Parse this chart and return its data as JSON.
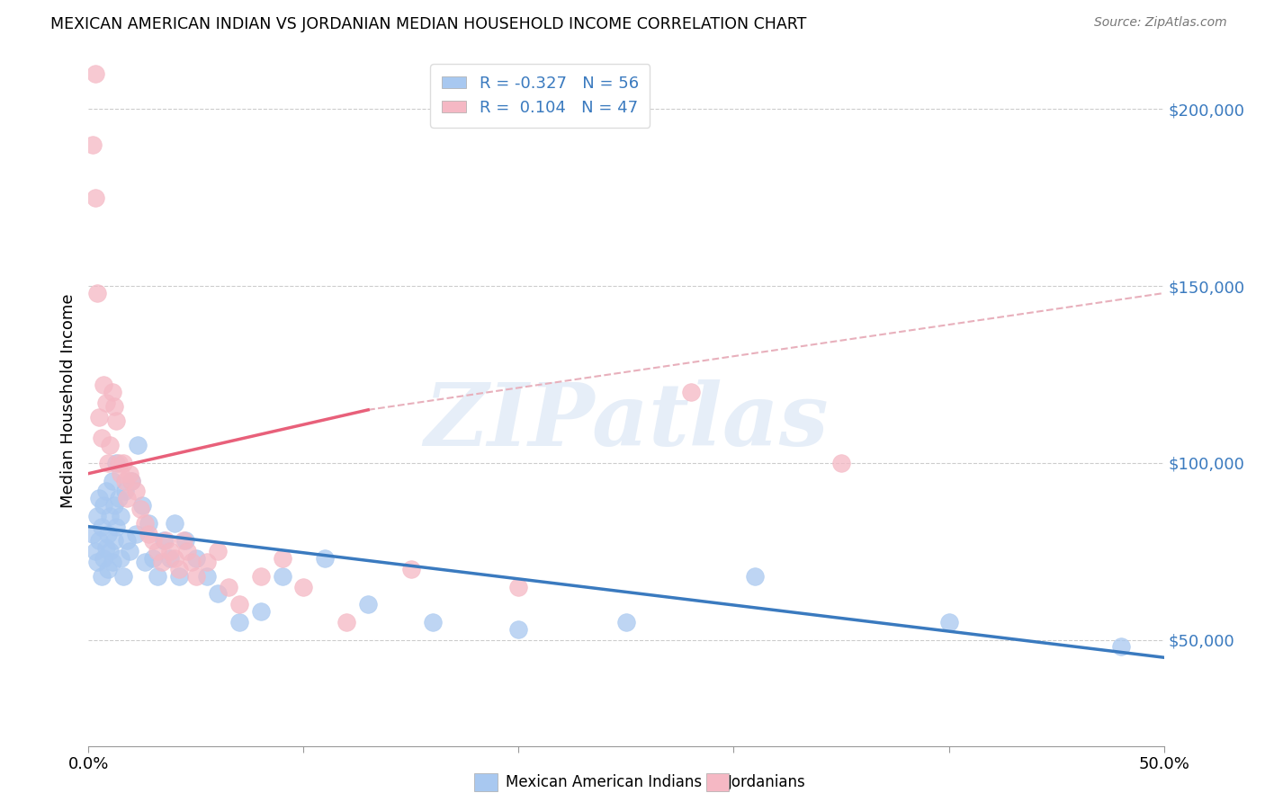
{
  "title": "MEXICAN AMERICAN INDIAN VS JORDANIAN MEDIAN HOUSEHOLD INCOME CORRELATION CHART",
  "source": "Source: ZipAtlas.com",
  "ylabel": "Median Household Income",
  "yticks": [
    50000,
    100000,
    150000,
    200000
  ],
  "ytick_labels": [
    "$50,000",
    "$100,000",
    "$150,000",
    "$200,000"
  ],
  "xlim": [
    0.0,
    0.5
  ],
  "ylim": [
    20000,
    215000
  ],
  "blue_color": "#a8c8f0",
  "pink_color": "#f5b8c4",
  "blue_line_color": "#3a7abf",
  "pink_line_color": "#e8607a",
  "pink_dashed_color": "#e8b0bc",
  "R_blue": -0.327,
  "N_blue": 56,
  "R_pink": 0.104,
  "N_pink": 47,
  "legend_label_blue": "Mexican American Indians",
  "legend_label_pink": "Jordanians",
  "watermark": "ZIPatlas",
  "blue_scatter_x": [
    0.002,
    0.003,
    0.004,
    0.004,
    0.005,
    0.005,
    0.006,
    0.006,
    0.007,
    0.007,
    0.008,
    0.008,
    0.009,
    0.009,
    0.01,
    0.01,
    0.011,
    0.011,
    0.012,
    0.012,
    0.013,
    0.013,
    0.014,
    0.015,
    0.015,
    0.016,
    0.017,
    0.018,
    0.019,
    0.02,
    0.022,
    0.023,
    0.025,
    0.026,
    0.028,
    0.03,
    0.032,
    0.035,
    0.038,
    0.04,
    0.042,
    0.045,
    0.05,
    0.055,
    0.06,
    0.07,
    0.08,
    0.09,
    0.11,
    0.13,
    0.16,
    0.2,
    0.25,
    0.31,
    0.4,
    0.48
  ],
  "blue_scatter_y": [
    80000,
    75000,
    72000,
    85000,
    78000,
    90000,
    68000,
    82000,
    73000,
    88000,
    76000,
    92000,
    80000,
    70000,
    85000,
    75000,
    95000,
    72000,
    88000,
    78000,
    100000,
    82000,
    90000,
    73000,
    85000,
    68000,
    92000,
    78000,
    75000,
    95000,
    80000,
    105000,
    88000,
    72000,
    83000,
    73000,
    68000,
    78000,
    73000,
    83000,
    68000,
    78000,
    73000,
    68000,
    63000,
    55000,
    58000,
    68000,
    73000,
    60000,
    55000,
    53000,
    55000,
    68000,
    55000,
    48000
  ],
  "pink_scatter_x": [
    0.002,
    0.003,
    0.003,
    0.004,
    0.005,
    0.006,
    0.007,
    0.008,
    0.009,
    0.01,
    0.011,
    0.012,
    0.013,
    0.014,
    0.015,
    0.016,
    0.017,
    0.018,
    0.019,
    0.02,
    0.022,
    0.024,
    0.026,
    0.028,
    0.03,
    0.032,
    0.034,
    0.036,
    0.038,
    0.04,
    0.042,
    0.044,
    0.046,
    0.048,
    0.05,
    0.055,
    0.06,
    0.065,
    0.07,
    0.08,
    0.09,
    0.1,
    0.12,
    0.15,
    0.2,
    0.28,
    0.35
  ],
  "pink_scatter_y": [
    190000,
    210000,
    175000,
    148000,
    113000,
    107000,
    122000,
    117000,
    100000,
    105000,
    120000,
    116000,
    112000,
    100000,
    97000,
    100000,
    95000,
    90000,
    97000,
    95000,
    92000,
    87000,
    83000,
    80000,
    78000,
    75000,
    72000,
    78000,
    75000,
    73000,
    70000,
    78000,
    75000,
    72000,
    68000,
    72000,
    75000,
    65000,
    60000,
    68000,
    73000,
    65000,
    55000,
    70000,
    65000,
    120000,
    100000
  ]
}
